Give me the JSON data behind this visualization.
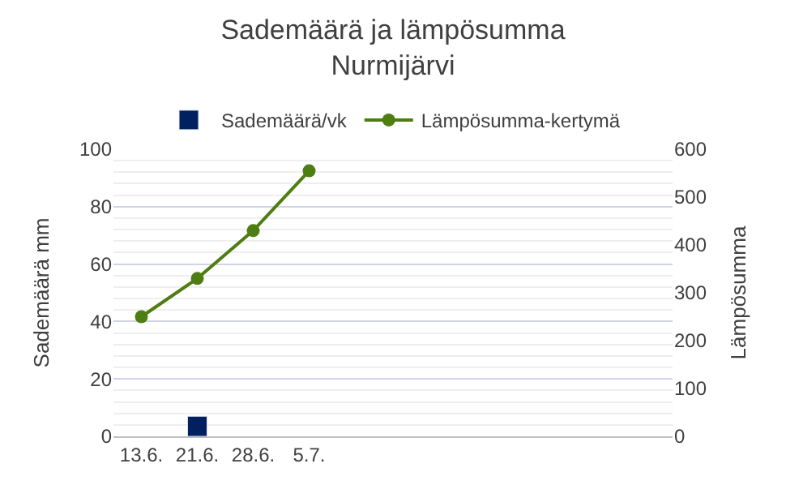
{
  "chart_data": {
    "type": "bar",
    "title": "Sademäärä ja lämpösumma\nNurmijärvi",
    "ylabel": "Sademäärä mm",
    "y2label": "Lämpösumma",
    "categories": [
      "13.6.",
      "21.6.",
      "28.6.",
      "5.7.",
      null,
      null,
      null,
      null,
      null,
      null
    ],
    "series": [
      {
        "name": "Sademäärä/vk",
        "color": "#002060",
        "values": [
          null,
          7,
          null,
          null,
          null,
          null,
          null,
          null,
          null,
          null
        ]
      },
      {
        "name": "Lämpösumma-kertymä",
        "type": "line",
        "axis": "y2",
        "color": "#4e7d12",
        "marker": "circle",
        "values": [
          250,
          330,
          430,
          555,
          null,
          null,
          null,
          null,
          null,
          null
        ]
      }
    ],
    "ylim": [
      0,
      100
    ],
    "yticks": [
      0,
      20,
      40,
      60,
      80,
      100
    ],
    "y2lim": [
      0,
      600
    ],
    "y2ticks": [
      0,
      100,
      200,
      300,
      400,
      500,
      600
    ],
    "grid": "y",
    "legend": "top"
  }
}
